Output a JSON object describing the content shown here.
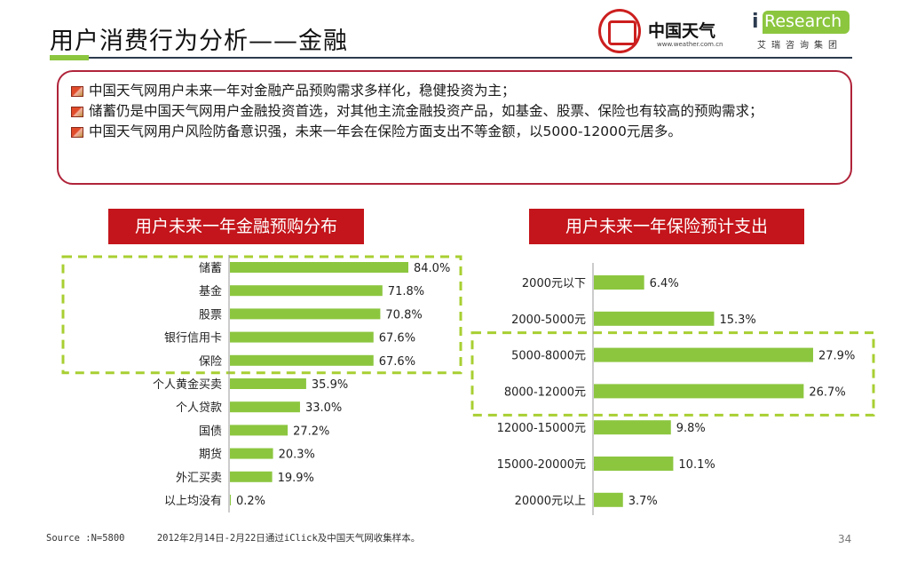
{
  "header": {
    "title": "用户消费行为分析——金融",
    "weather_logo": {
      "brand": "中国天气",
      "url": "www.weather.com.cn"
    },
    "iresearch_logo": {
      "mark": "i",
      "word": "Research",
      "sub": "艾瑞咨询集团"
    }
  },
  "summary": {
    "bullets": [
      "中国天气网用户未来一年对金融产品预购需求多样化，稳健投资为主；",
      "储蓄仍是中国天气网用户金融投资首选，对其他主流金融投资产品，如基金、股票、保险也有较高的预购需求；",
      "中国天气网用户风险防备意识强，未来一年会在保险方面支出不等金额，以5000-12000元居多。"
    ]
  },
  "chart_data": [
    {
      "type": "bar",
      "orientation": "horizontal",
      "title": "用户未来一年金融预购分布",
      "categories": [
        "储蓄",
        "基金",
        "股票",
        "银行信用卡",
        "保险",
        "个人黄金买卖",
        "个人贷款",
        "国债",
        "期货",
        "外汇买卖",
        "以上均没有"
      ],
      "values": [
        84.0,
        71.8,
        70.8,
        67.6,
        67.6,
        35.9,
        33.0,
        27.2,
        20.3,
        19.9,
        0.2
      ],
      "value_labels": [
        "84.0%",
        "71.8%",
        "70.8%",
        "67.6%",
        "67.6%",
        "35.9%",
        "33.0%",
        "27.2%",
        "20.3%",
        "19.9%",
        "0.2%"
      ],
      "xlim": [
        0,
        84
      ],
      "highlight_categories": [
        "储蓄",
        "基金",
        "股票",
        "银行信用卡",
        "保险"
      ],
      "bar_color": "#8cc63f"
    },
    {
      "type": "bar",
      "orientation": "horizontal",
      "title": "用户未来一年保险预计支出",
      "categories": [
        "2000元以下",
        "2000-5000元",
        "5000-8000元",
        "8000-12000元",
        "12000-15000元",
        "15000-20000元",
        "20000元以上"
      ],
      "values": [
        6.4,
        15.3,
        27.9,
        26.7,
        9.8,
        10.1,
        3.7
      ],
      "value_labels": [
        "6.4%",
        "15.3%",
        "27.9%",
        "26.7%",
        "9.8%",
        "10.1%",
        "3.7%"
      ],
      "xlim": [
        0,
        27.9
      ],
      "highlight_categories": [
        "5000-8000元",
        "8000-12000元"
      ],
      "bar_color": "#8cc63f"
    }
  ],
  "footer": {
    "source": "Source :N=5800",
    "note": "2012年2月14日-2月22日通过iClick及中国天气网收集样本。",
    "page": "34"
  },
  "colors": {
    "accent_red": "#c3151b",
    "box_border": "#b0243a",
    "bar_green": "#8cc63f",
    "highlight_dash": "#a8cf32"
  }
}
